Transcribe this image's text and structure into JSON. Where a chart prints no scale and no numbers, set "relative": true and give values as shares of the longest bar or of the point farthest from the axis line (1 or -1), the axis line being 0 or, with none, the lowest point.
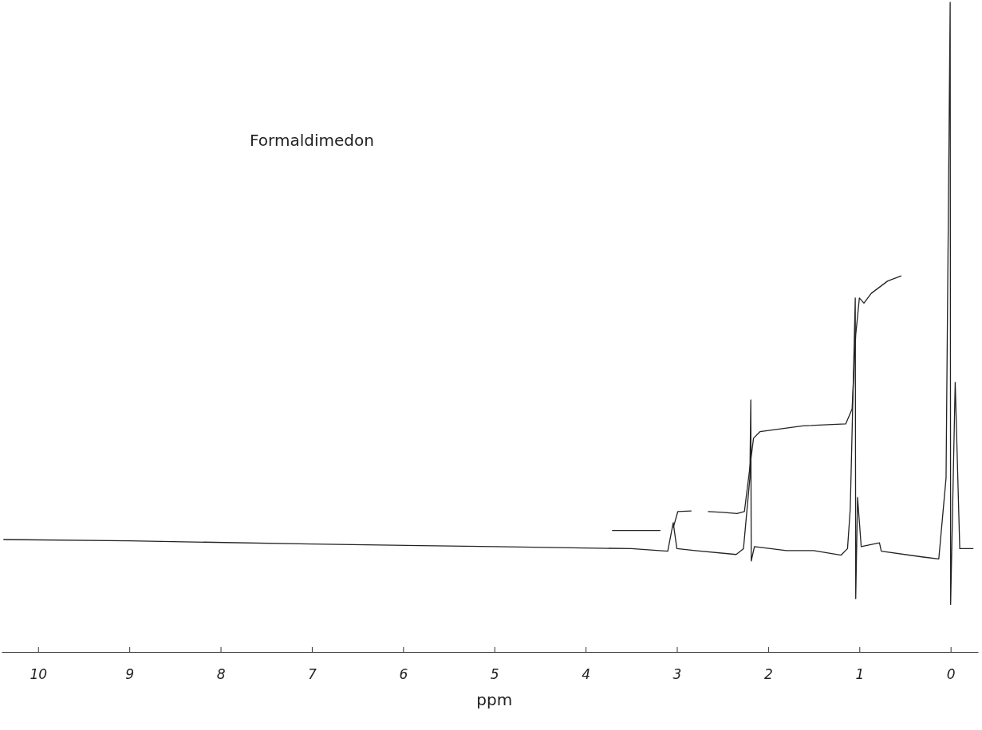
{
  "chart_data": {
    "type": "line",
    "relative": true,
    "xlabel": "ppm",
    "annotations": [
      "Formaldimedon"
    ],
    "xlim": [
      10.4,
      -0.3
    ],
    "xticks": [
      10,
      9,
      8,
      7,
      6,
      5,
      4,
      3,
      2,
      1,
      0
    ],
    "series": [
      {
        "color": "#222222",
        "x": [
          10.38,
          9.0,
          7.0,
          5.0,
          3.5,
          3.1,
          3.04,
          3.0,
          2.8,
          2.35,
          2.27,
          2.2,
          2.19,
          2.185,
          2.15,
          1.8,
          1.5,
          1.2,
          1.13,
          1.1,
          1.045,
          1.04,
          1.02,
          0.98,
          0.78,
          0.76,
          0.3,
          0.13,
          0.05,
          0.005,
          0.0,
          -0.05,
          -0.1,
          -0.25
        ],
        "values": [
          0.173,
          0.171,
          0.166,
          0.162,
          0.159,
          0.155,
          0.199,
          0.159,
          0.156,
          0.15,
          0.159,
          0.268,
          0.388,
          0.14,
          0.162,
          0.156,
          0.156,
          0.149,
          0.159,
          0.22,
          0.545,
          0.082,
          0.238,
          0.162,
          0.168,
          0.155,
          0.146,
          0.143,
          0.268,
          1.0,
          0.073,
          0.415,
          0.159,
          0.159
        ]
      },
      {
        "color": "#222222",
        "x": [
          3.71,
          3.18,
          3.1,
          3.04,
          2.99,
          2.84,
          2.8,
          2.66,
          2.5,
          2.34,
          2.26,
          2.2,
          2.16,
          2.09,
          1.62,
          1.15,
          1.08,
          1.04,
          1.0,
          0.95,
          0.87,
          0.69,
          0.54
        ],
        "values": [
          0.187,
          0.187,
          null,
          0.191,
          0.216,
          0.217,
          null,
          0.216,
          0.215,
          0.213,
          0.216,
          0.284,
          0.329,
          0.339,
          0.348,
          0.351,
          0.374,
          0.488,
          0.545,
          0.537,
          0.552,
          0.571,
          0.579
        ]
      }
    ]
  }
}
